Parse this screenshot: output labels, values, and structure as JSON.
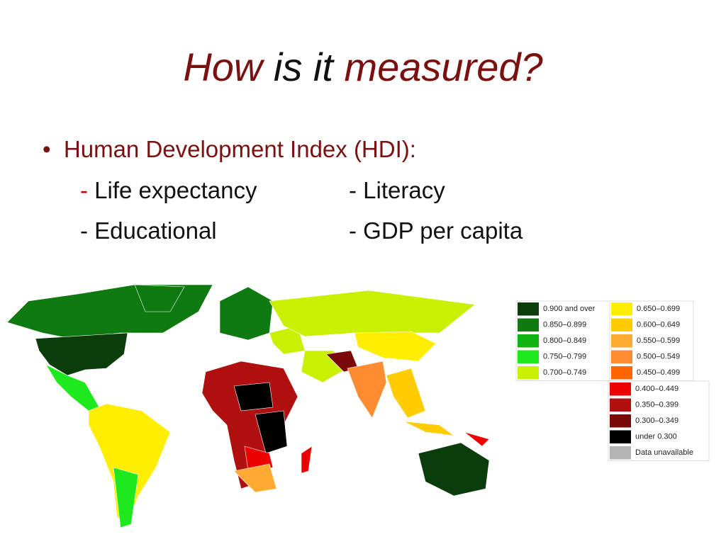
{
  "title": {
    "parts": [
      "How",
      "is it",
      "measured?"
    ]
  },
  "bullet": {
    "text": "Human Development Index (HDI):",
    "items": [
      {
        "dash": "-",
        "label": "Life expectancy"
      },
      {
        "dash": "-",
        "label": "Literacy"
      },
      {
        "dash": "-",
        "label": "Educational"
      },
      {
        "dash": "-",
        "label": "GDP per capita"
      }
    ]
  },
  "legend": [
    {
      "label": "0.900 and over",
      "color": "#0b3d0b"
    },
    {
      "label": "0.850–0.899",
      "color": "#0f7a0f"
    },
    {
      "label": "0.800–0.849",
      "color": "#12b412"
    },
    {
      "label": "0.750–0.799",
      "color": "#1ee81e"
    },
    {
      "label": "0.700–0.749",
      "color": "#c8f000"
    },
    {
      "label": "0.650–0.699",
      "color": "#ffee00"
    },
    {
      "label": "0.600–0.649",
      "color": "#ffcc00"
    },
    {
      "label": "0.550–0.599",
      "color": "#ffaa33"
    },
    {
      "label": "0.500–0.549",
      "color": "#ff8c33"
    },
    {
      "label": "0.450–0.499",
      "color": "#ff6600"
    },
    {
      "label": "0.400–0.449",
      "color": "#ee0000"
    },
    {
      "label": "0.350–0.399",
      "color": "#b01010"
    },
    {
      "label": "0.300–0.349",
      "color": "#7a0a0a"
    },
    {
      "label": "under 0.300",
      "color": "#000000"
    },
    {
      "label": "Data unavailable",
      "color": "#b4b4b4"
    }
  ]
}
